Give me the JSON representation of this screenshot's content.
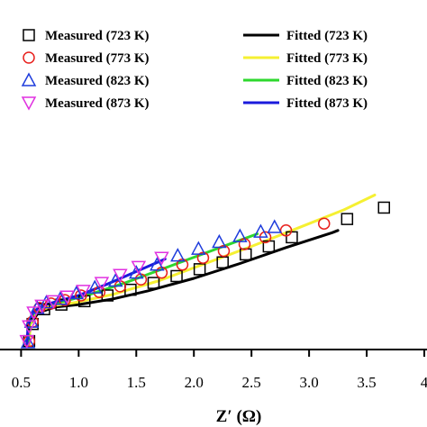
{
  "chart_data": {
    "type": "scatter",
    "title": "",
    "xlabel": "Z′ (Ω)",
    "ylabel": "",
    "xlim": [
      0.45,
      4.0
    ],
    "ylim": [
      0,
      2.0
    ],
    "grid": false,
    "x_tick_labels": [
      "0.5",
      "1.0",
      "1.5",
      "2.0",
      "2.5",
      "3.0",
      "3.5",
      "4"
    ],
    "x_ticks": [
      0.5,
      1.0,
      1.5,
      2.0,
      2.5,
      3.0,
      3.5,
      4.0
    ],
    "legend_position": "top",
    "measured_series": [
      {
        "name": "Measured (723 K)",
        "marker": "square",
        "color": "#000000",
        "x": [
          0.57,
          0.6,
          0.7,
          0.85,
          1.05,
          1.25,
          1.45,
          1.65,
          1.85,
          2.05,
          2.25,
          2.45,
          2.65,
          2.85,
          3.33,
          3.65
        ],
        "y": [
          0.05,
          0.2,
          0.33,
          0.37,
          0.4,
          0.45,
          0.5,
          0.56,
          0.62,
          0.68,
          0.74,
          0.81,
          0.88,
          0.96,
          1.12,
          1.22
        ]
      },
      {
        "name": "Measured (773 K)",
        "marker": "circle",
        "color": "#e8201c",
        "x": [
          0.57,
          0.6,
          0.66,
          0.76,
          0.88,
          1.02,
          1.18,
          1.36,
          1.54,
          1.72,
          1.9,
          2.08,
          2.26,
          2.44,
          2.62,
          2.8,
          3.13
        ],
        "y": [
          0.05,
          0.22,
          0.34,
          0.38,
          0.41,
          0.45,
          0.48,
          0.53,
          0.59,
          0.65,
          0.72,
          0.78,
          0.84,
          0.9,
          0.96,
          1.02,
          1.08
        ]
      },
      {
        "name": "Measured (823 K)",
        "marker": "triangle-up",
        "color": "#1e3cdc",
        "x": [
          0.56,
          0.59,
          0.64,
          0.72,
          0.84,
          0.98,
          1.14,
          1.32,
          1.5,
          1.68,
          1.86,
          2.04,
          2.22,
          2.4,
          2.58,
          2.7
        ],
        "y": [
          0.04,
          0.22,
          0.34,
          0.39,
          0.42,
          0.47,
          0.52,
          0.58,
          0.65,
          0.72,
          0.8,
          0.86,
          0.92,
          0.97,
          1.01,
          1.05
        ]
      },
      {
        "name": "Measured (873 K)",
        "marker": "triangle-down",
        "color": "#e030e0",
        "x": [
          0.55,
          0.57,
          0.61,
          0.68,
          0.78,
          0.9,
          1.04,
          1.2,
          1.36,
          1.52,
          1.72
        ],
        "y": [
          0.05,
          0.18,
          0.3,
          0.36,
          0.4,
          0.44,
          0.49,
          0.56,
          0.63,
          0.7,
          0.78
        ]
      }
    ],
    "fitted_series": [
      {
        "name": "Fitted (723 K)",
        "color": "#000000",
        "x": [
          0.57,
          0.58,
          0.65,
          0.8,
          1.0,
          1.3,
          1.6,
          2.0,
          2.4,
          2.8,
          3.2,
          3.25
        ],
        "y": [
          0.02,
          0.2,
          0.3,
          0.35,
          0.37,
          0.42,
          0.49,
          0.6,
          0.73,
          0.87,
          1.0,
          1.02
        ]
      },
      {
        "name": "Fitted (773 K)",
        "color": "#f5f032",
        "x": [
          0.57,
          0.58,
          0.64,
          0.78,
          0.98,
          1.3,
          1.7,
          2.1,
          2.5,
          2.9,
          3.3,
          3.57
        ],
        "y": [
          0.02,
          0.2,
          0.31,
          0.36,
          0.39,
          0.46,
          0.58,
          0.73,
          0.88,
          1.04,
          1.2,
          1.33
        ]
      },
      {
        "name": "Fitted (823 K)",
        "color": "#2ed82e",
        "x": [
          0.56,
          0.57,
          0.62,
          0.72,
          0.88,
          1.1,
          1.4,
          1.8,
          2.2,
          2.55
        ],
        "y": [
          0.02,
          0.2,
          0.32,
          0.37,
          0.4,
          0.46,
          0.56,
          0.71,
          0.86,
          0.99
        ]
      },
      {
        "name": "Fitted (873 K)",
        "color": "#1a1adc",
        "x": [
          0.55,
          0.56,
          0.6,
          0.68,
          0.82,
          1.0,
          1.25,
          1.5,
          1.75
        ],
        "y": [
          0.02,
          0.18,
          0.3,
          0.36,
          0.4,
          0.45,
          0.55,
          0.66,
          0.77
        ]
      }
    ]
  }
}
